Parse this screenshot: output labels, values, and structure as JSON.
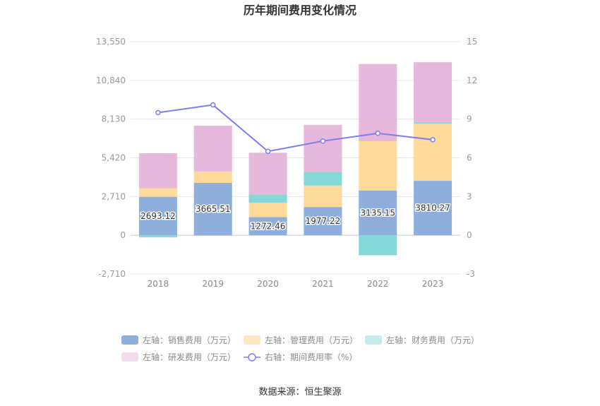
{
  "chart_data": {
    "type": "bar",
    "title": "历年期间费用变化情况",
    "categories": [
      "2018",
      "2019",
      "2020",
      "2021",
      "2022",
      "2023"
    ],
    "left_axis": {
      "ticks": [
        "13,550",
        "10,840",
        "8,130",
        "5,420",
        "2,710",
        "0",
        "-2,710"
      ],
      "ylim": [
        -2710,
        13550
      ]
    },
    "right_axis": {
      "ticks": [
        "15",
        "12",
        "9",
        "6",
        "3",
        "0",
        "-3"
      ],
      "ylim": [
        -3,
        15
      ]
    },
    "series": [
      {
        "name": "左轴：销售费用（万元）",
        "kind": "bar",
        "color": "#8eaedc",
        "values": [
          2693.12,
          3665.51,
          1272.46,
          1977.22,
          3135.15,
          3810.27
        ],
        "labels": [
          "2693.12",
          "3665.51",
          "1272.46",
          "1977.22",
          "3135.15",
          "3810.27"
        ]
      },
      {
        "name": "左轴：管理费用（万元）",
        "kind": "bar",
        "color": "#ffd99a",
        "values": [
          600,
          800,
          1000,
          1500,
          3450,
          4000
        ]
      },
      {
        "name": "左轴：财务费用（万元）",
        "kind": "bar",
        "color": "#85d8d8",
        "values": [
          -150,
          -30,
          550,
          950,
          -1400,
          100
        ]
      },
      {
        "name": "左轴：研发费用（万元）",
        "kind": "bar",
        "color": "#e6b8db",
        "values": [
          2450,
          3200,
          2950,
          3300,
          5400,
          4200
        ]
      },
      {
        "name": "右轴：期间费用率（%）",
        "kind": "line",
        "color": "#7b7ef0",
        "values": [
          9.5,
          10.1,
          6.5,
          7.3,
          7.9,
          7.4
        ]
      }
    ],
    "grid": true,
    "legend": "bottom",
    "legend_swatches": [
      "#8eaedc",
      "#ffe7c2",
      "#c4ecec",
      "#f3dcee"
    ]
  },
  "source_note": "数据来源：恒生聚源"
}
